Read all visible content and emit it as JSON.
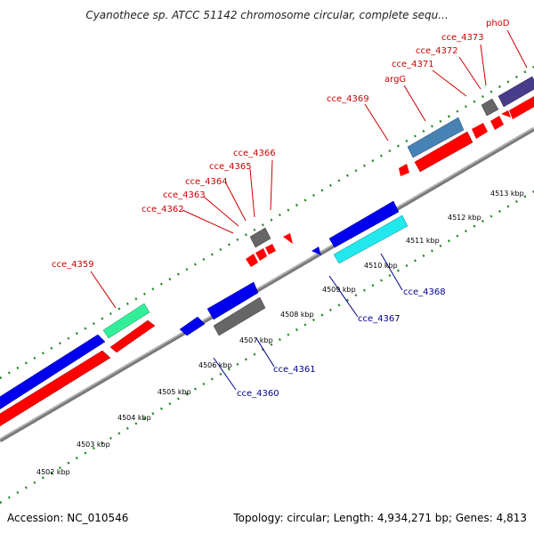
{
  "title": "Cyanothece sp. ATCC 51142 chromosome circular, complete sequ...",
  "footer": {
    "accession": "Accession: NC_010546",
    "summary": "Topology: circular; Length: 4,934,271 bp; Genes: 4,813"
  },
  "ticks": [
    "4502 kbp",
    "4503 kbp",
    "4504 kbp",
    "4505 kbp",
    "4506 kbp",
    "4507 kbp",
    "4508 kbp",
    "4509 kbp",
    "4510 kbp",
    "4511 kbp",
    "4512 kbp",
    "4513 kbp"
  ],
  "colors": {
    "forward_label": "#cc0000",
    "reverse_label": "#00008b",
    "tick": "#228b22",
    "backbone": "#808080",
    "cds": "#ff0000",
    "gene_blue": "#0000ee",
    "gene_gray": "#666666",
    "gene_teal": "#33ee99",
    "gene_steel": "#4682b4",
    "gene_cyan": "#22e8ee",
    "gene_slate": "#483d8b"
  },
  "forward_labels": [
    "cce_4359",
    "cce_4362",
    "cce_4363",
    "cce_4364",
    "cce_4365",
    "cce_4366",
    "cce_4369",
    "argG",
    "cce_4371",
    "cce_4372",
    "cce_4373",
    "phoD"
  ],
  "reverse_labels": [
    "cce_4360",
    "cce_4361",
    "cce_4367",
    "cce_4368"
  ]
}
